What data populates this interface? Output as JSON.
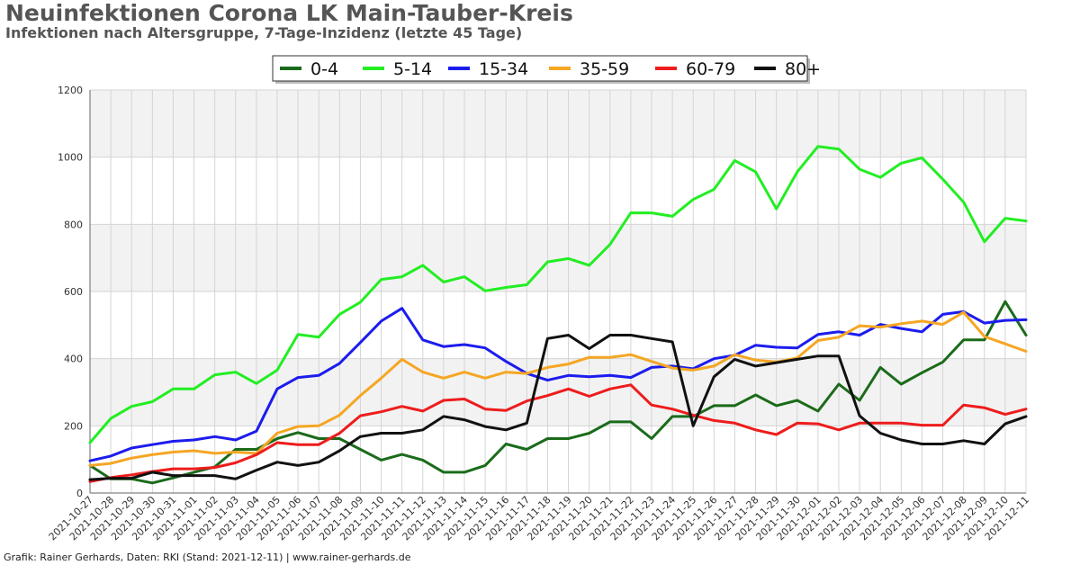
{
  "title": "Neuinfektionen Corona LK Main-Tauber-Kreis",
  "subtitle": "Infektionen nach Altersgruppe, 7-Tage-Inzidenz (letzte 45 Tage)",
  "credit": "Grafik: Rainer Gerhards, Daten: RKI (Stand: 2021-12-11) | www.rainer-gerhards.de",
  "chart_data": {
    "type": "line",
    "title": "Neuinfektionen Corona LK Main-Tauber-Kreis",
    "subtitle": "Infektionen nach Altersgruppe, 7-Tage-Inzidenz (letzte 45 Tage)",
    "xlabel": "",
    "ylabel": "",
    "ylim": [
      0,
      1200
    ],
    "yticks": [
      0,
      200,
      400,
      600,
      800,
      1000,
      1200
    ],
    "grid": true,
    "legend_position": "top-center",
    "categories": [
      "2021-10-27",
      "2021-10-28",
      "2021-10-29",
      "2021-10-30",
      "2021-10-31",
      "2021-11-01",
      "2021-11-02",
      "2021-11-03",
      "2021-11-04",
      "2021-11-05",
      "2021-11-06",
      "2021-11-07",
      "2021-11-08",
      "2021-11-09",
      "2021-11-10",
      "2021-11-11",
      "2021-11-12",
      "2021-11-13",
      "2021-11-14",
      "2021-11-15",
      "2021-11-16",
      "2021-11-17",
      "2021-11-18",
      "2021-11-19",
      "2021-11-20",
      "2021-11-21",
      "2021-11-22",
      "2021-11-23",
      "2021-11-24",
      "2021-11-25",
      "2021-11-26",
      "2021-11-27",
      "2021-11-28",
      "2021-11-29",
      "2021-11-30",
      "2021-12-01",
      "2021-12-02",
      "2021-12-03",
      "2021-12-04",
      "2021-12-05",
      "2021-12-06",
      "2021-12-07",
      "2021-12-08",
      "2021-12-09",
      "2021-12-10",
      "2021-12-11"
    ],
    "series": [
      {
        "name": "0-4",
        "color": "#1a6b1a",
        "values": [
          82,
          42,
          42,
          30,
          45,
          62,
          78,
          130,
          130,
          162,
          180,
          162,
          162,
          130,
          98,
          115,
          98,
          62,
          62,
          82,
          146,
          130,
          162,
          162,
          178,
          212,
          212,
          162,
          228,
          228,
          260,
          260,
          292,
          260,
          276,
          244,
          324,
          276,
          374,
          324,
          358,
          390,
          456,
          456,
          570,
          470
        ]
      },
      {
        "name": "5-14",
        "color": "#22ee22",
        "values": [
          150,
          222,
          258,
          272,
          310,
          310,
          352,
          360,
          326,
          366,
          472,
          464,
          532,
          568,
          636,
          644,
          678,
          628,
          644,
          602,
          612,
          620,
          688,
          698,
          678,
          740,
          834,
          834,
          824,
          874,
          904,
          990,
          956,
          846,
          956,
          1032,
          1024,
          964,
          940,
          982,
          998,
          934,
          866,
          748,
          818,
          810
        ]
      },
      {
        "name": "15-34",
        "color": "#1c1cee",
        "values": [
          96,
          110,
          134,
          144,
          154,
          158,
          168,
          158,
          184,
          310,
          344,
          350,
          386,
          448,
          512,
          550,
          456,
          436,
          442,
          432,
          392,
          356,
          336,
          350,
          346,
          350,
          344,
          374,
          378,
          370,
          400,
          410,
          440,
          434,
          432,
          472,
          480,
          470,
          502,
          490,
          480,
          532,
          540,
          506,
          514,
          516
        ]
      },
      {
        "name": "35-59",
        "color": "#f5a623",
        "values": [
          82,
          88,
          104,
          114,
          122,
          126,
          118,
          122,
          118,
          178,
          198,
          200,
          232,
          290,
          342,
          398,
          360,
          342,
          360,
          342,
          360,
          356,
          374,
          384,
          404,
          404,
          412,
          392,
          372,
          366,
          378,
          412,
          396,
          390,
          402,
          454,
          464,
          498,
          494,
          504,
          512,
          502,
          538,
          466,
          444,
          422
        ]
      },
      {
        "name": "60-79",
        "color": "#ee1c1c",
        "values": [
          34,
          46,
          54,
          64,
          72,
          72,
          76,
          90,
          114,
          150,
          144,
          144,
          178,
          230,
          242,
          258,
          244,
          276,
          280,
          250,
          246,
          274,
          290,
          310,
          288,
          310,
          322,
          262,
          250,
          232,
          216,
          208,
          188,
          174,
          208,
          206,
          188,
          208,
          208,
          208,
          202,
          202,
          262,
          254,
          234,
          250
        ]
      },
      {
        "name": "80+",
        "color": "#111111",
        "values": [
          40,
          44,
          44,
          62,
          52,
          52,
          52,
          42,
          68,
          92,
          82,
          92,
          126,
          168,
          178,
          178,
          188,
          228,
          218,
          198,
          188,
          208,
          460,
          470,
          430,
          470,
          470,
          460,
          450,
          200,
          346,
          398,
          378,
          388,
          398,
          408,
          408,
          230,
          178,
          158,
          146,
          146,
          156,
          146,
          206,
          228
        ]
      }
    ]
  }
}
